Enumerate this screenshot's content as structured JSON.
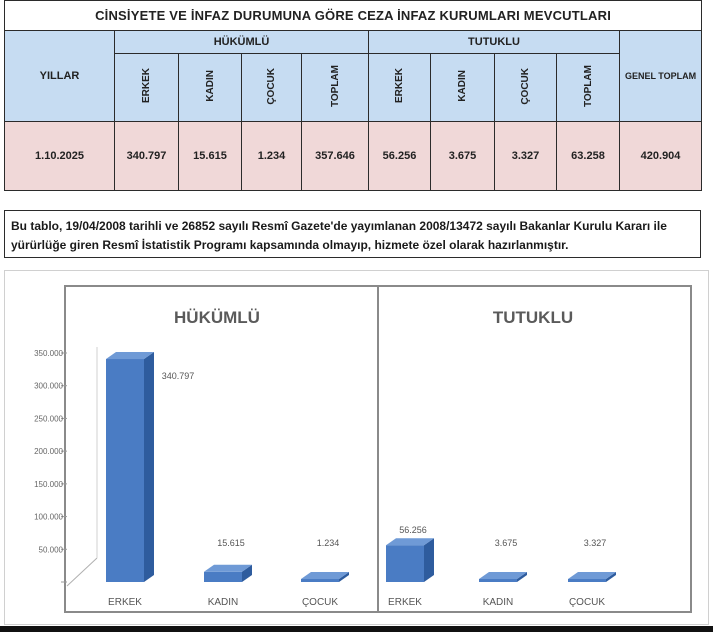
{
  "table": {
    "title": "CİNSİYETE VE İNFAZ DURUMUNA GÖRE CEZA İNFAZ KURUMLARI MEVCUTLARI",
    "years_header": "YILLAR",
    "group_hukumlu": "HÜKÜMLÜ",
    "group_tutuklu": "TUTUKLU",
    "genel_toplam_header": "GENEL TOPLAM",
    "subheaders": [
      "ERKEK",
      "KADIN",
      "ÇOCUK",
      "TOPLAM",
      "ERKEK",
      "KADIN",
      "ÇOCUK",
      "TOPLAM"
    ],
    "row": {
      "date": "1.10.2025",
      "cells": [
        "340.797",
        "15.615",
        "1.234",
        "357.646",
        "56.256",
        "3.675",
        "3.327",
        "63.258"
      ],
      "genel_toplam": "420.904"
    }
  },
  "note": "Bu tablo, 19/04/2008 tarihli ve 26852 sayılı Resmî Gazete'de yayımlanan 2008/13472 sayılı Bakanlar Kurulu Kararı ile yürürlüğe giren Resmî İstatistik Programı kapsamında olmayıp, hizmete özel olarak hazırlanmıştır.",
  "colors": {
    "header_fill": "#c6dcf2",
    "data_fill": "#f0d8d8",
    "bar_front": "#4a7cc4",
    "bar_top": "#6f9ad6",
    "bar_side": "#2e5c9e"
  },
  "chart_data": {
    "type": "bar",
    "three_d": true,
    "ylim": [
      0,
      350000
    ],
    "y_ticks": [
      "",
      "50.000",
      "100.000",
      "150.000",
      "200.000",
      "250.000",
      "300.000",
      "350.000"
    ],
    "panels": [
      {
        "title": "HÜKÜMLÜ",
        "categories": [
          "ERKEK",
          "KADIN",
          "ÇOCUK"
        ],
        "values": [
          340797,
          15615,
          1234
        ],
        "labels": [
          "340.797",
          "15.615",
          "1.234"
        ]
      },
      {
        "title": "TUTUKLU",
        "categories": [
          "ERKEK",
          "KADIN",
          "ÇOCUK"
        ],
        "values": [
          56256,
          3675,
          3327
        ],
        "labels": [
          "56.256",
          "3.675",
          "3.327"
        ]
      }
    ]
  }
}
